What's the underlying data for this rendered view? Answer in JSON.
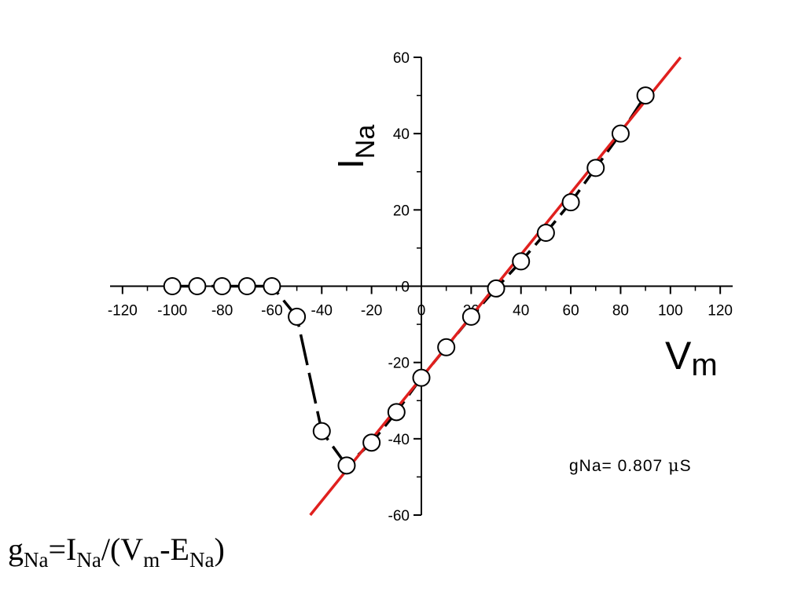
{
  "chart_data": {
    "type": "scatter",
    "title": "",
    "xlabel": {
      "main": "V",
      "sub": "m"
    },
    "ylabel": {
      "main": "I",
      "sub": "Na"
    },
    "xlim": [
      -125,
      125
    ],
    "ylim": [
      -60,
      60
    ],
    "x_ticks": [
      -120,
      -100,
      -80,
      -60,
      -40,
      -20,
      0,
      20,
      40,
      60,
      80,
      100,
      120
    ],
    "y_ticks": [
      -60,
      -40,
      -20,
      0,
      20,
      40,
      60
    ],
    "grid": false,
    "series": [
      {
        "marker": "open-circle",
        "line": "dashed-black",
        "x": [
          -100,
          -90,
          -80,
          -70,
          -60,
          -50,
          -40,
          -30,
          -20,
          -10,
          0,
          10,
          20,
          30,
          40,
          50,
          60,
          70,
          80,
          90
        ],
        "y": [
          0,
          0,
          0,
          0,
          0,
          -8,
          -38,
          -47,
          -41,
          -33,
          -24,
          -16,
          -8,
          -0.6,
          6.5,
          14,
          22,
          31,
          40,
          50
        ]
      }
    ],
    "fit_line": {
      "color": "#e0201e",
      "slope": 0.807,
      "intercept": -24
    },
    "annotation": {
      "prefix": "gNa= 0.807 ",
      "mu": "μ",
      "unit": "S"
    }
  },
  "formula": {
    "g": "g",
    "g_sub": "Na",
    "eq_i": "=I",
    "i_sub": "Na",
    "open": "/(V",
    "v_sub": "m",
    "minus_e": "-E",
    "e_sub": "Na",
    "close": ")"
  }
}
